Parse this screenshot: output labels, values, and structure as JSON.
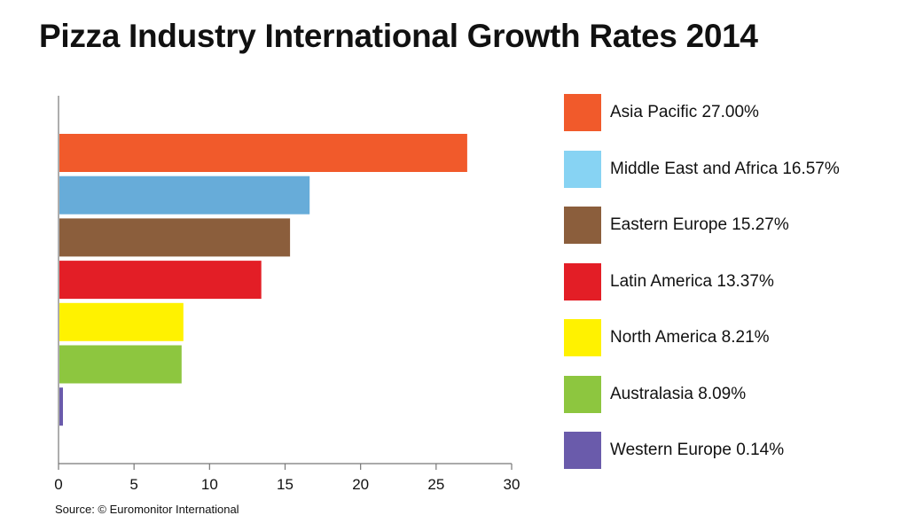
{
  "chart_data": {
    "type": "bar",
    "orientation": "horizontal",
    "title": "Pizza Industry International Growth Rates 2014",
    "source": "Source: © Euromonitor International",
    "categories": [
      "Asia Pacific",
      "Middle East and Africa",
      "Eastern Europe",
      "Latin America",
      "North America",
      "Australasia",
      "Western Europe"
    ],
    "values": [
      27.0,
      16.57,
      15.27,
      13.37,
      8.21,
      8.09,
      0.14
    ],
    "bar_colors": [
      "#f15a2b",
      "#67acd9",
      "#8b5e3c",
      "#e31e26",
      "#fff200",
      "#8dc63f",
      "#6a5bab"
    ],
    "legend": [
      {
        "label": "Asia Pacific 27.00%",
        "color": "#f15a2b"
      },
      {
        "label": "Middle East and Africa 16.57%",
        "color": "#87d3f3"
      },
      {
        "label": "Eastern Europe 15.27%",
        "color": "#8b5e3c"
      },
      {
        "label": "Latin America 13.37%",
        "color": "#e31e26"
      },
      {
        "label": "North America 8.21%",
        "color": "#fff200"
      },
      {
        "label": "Australasia 8.09%",
        "color": "#8dc63f"
      },
      {
        "label": "Western Europe 0.14%",
        "color": "#6a5bab"
      }
    ],
    "xlim": [
      0,
      30
    ],
    "xticks": [
      0,
      5,
      10,
      15,
      20,
      25,
      30
    ],
    "xlabel": "",
    "ylabel": "",
    "grid": false,
    "legend_position": "right"
  }
}
